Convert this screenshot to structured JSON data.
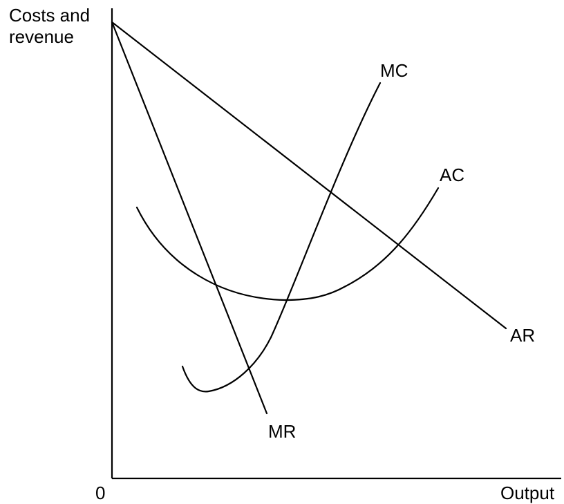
{
  "diagram": {
    "y_axis_label": [
      "Costs and",
      "revenue"
    ],
    "x_axis_label": "Output",
    "origin_label": "0",
    "curves": [
      {
        "id": "ar",
        "label": "AR",
        "shape": "straight downward-sloping line from the vertical axis"
      },
      {
        "id": "mr",
        "label": "MR",
        "shape": "steeper straight line from the same vertical-axis point"
      },
      {
        "id": "mc",
        "label": "MC",
        "shape": "U-shaped, rising steeply"
      },
      {
        "id": "ac",
        "label": "AC",
        "shape": "U-shaped, flatter"
      }
    ]
  },
  "colors": {
    "line": "#000000",
    "background": "#ffffff"
  }
}
